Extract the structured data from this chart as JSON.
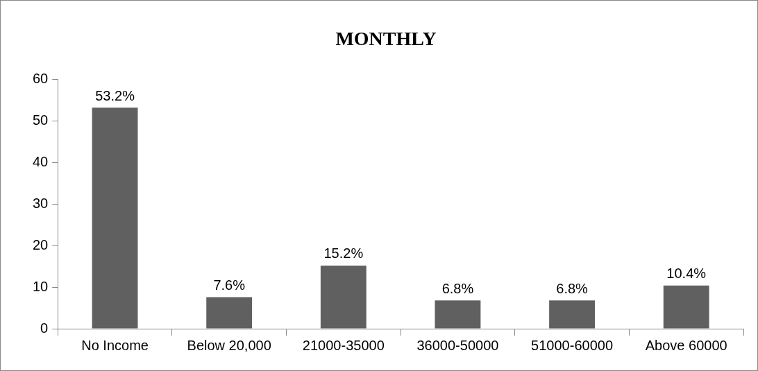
{
  "chart_data": {
    "type": "bar",
    "title": "MONTHLY",
    "categories": [
      "No Income",
      "Below 20,000",
      "21000-35000",
      "36000-50000",
      "51000-60000",
      "Above 60000"
    ],
    "values": [
      53.2,
      7.6,
      15.2,
      6.8,
      6.8,
      10.4
    ],
    "value_labels": [
      "53.2%",
      "7.6%",
      "15.2%",
      "6.8%",
      "6.8%",
      "10.4%"
    ],
    "color": "#606060",
    "ylim": [
      0,
      60
    ],
    "yticks": [
      0,
      10,
      20,
      30,
      40,
      50,
      60
    ],
    "grid": false,
    "legend": false
  }
}
